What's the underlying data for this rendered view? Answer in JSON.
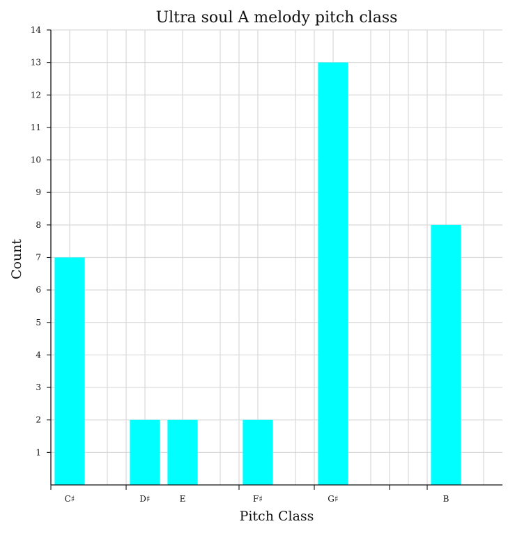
{
  "chart_data": {
    "type": "bar",
    "title": "Ultra soul A melody pitch class",
    "xlabel": "Pitch Class",
    "ylabel": "Count",
    "ylim": [
      0,
      14
    ],
    "yticks": [
      1,
      2,
      3,
      4,
      5,
      6,
      7,
      8,
      9,
      10,
      11,
      12,
      13,
      14
    ],
    "xlim": [
      -0.5,
      11.5
    ],
    "pitch_positions": [
      0,
      2,
      3,
      5,
      7,
      10
    ],
    "categories": [
      "C♯",
      "D♯",
      "E",
      "F♯",
      "G♯",
      "B"
    ],
    "values": [
      7,
      2,
      2,
      2,
      13,
      8
    ],
    "bar_color": "#00ffff",
    "grid": true
  }
}
